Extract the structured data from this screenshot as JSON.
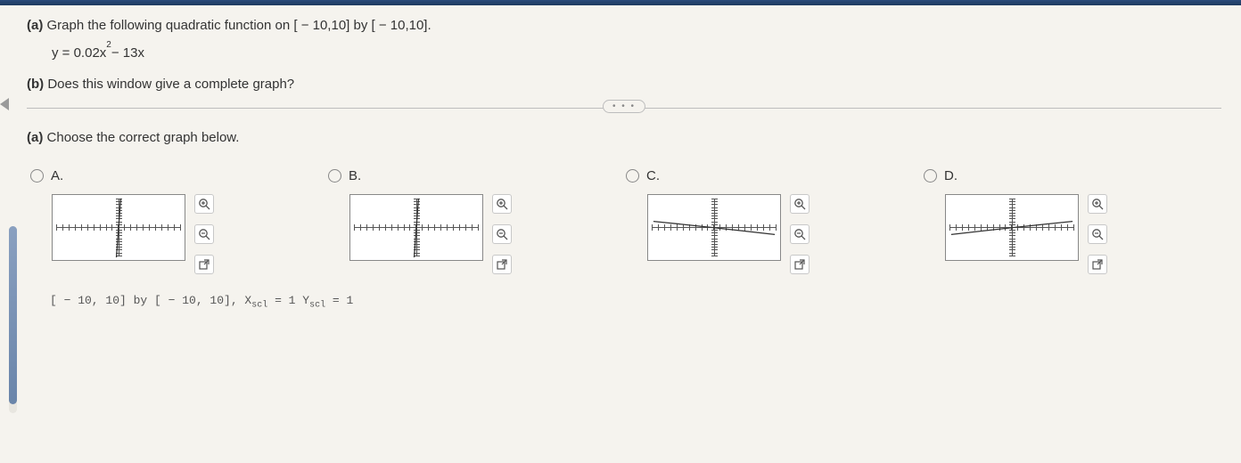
{
  "topbar_color": "#1e3a5f",
  "question": {
    "part_a_label": "(a)",
    "part_a_text": "Graph the following quadratic function on [ − 10,10] by [ − 10,10].",
    "equation_lhs": "y = 0.02x",
    "equation_exp": "2",
    "equation_rhs": " − 13x",
    "part_b_label": "(b)",
    "part_b_text": "Does this window give a complete graph?"
  },
  "pill_text": "• • •",
  "choose": {
    "label": "(a)",
    "text": "Choose the correct graph below."
  },
  "options": [
    {
      "label": "A.",
      "curve_type": "steep_neg_through_origin"
    },
    {
      "label": "B.",
      "curve_type": "steep_pos_through_origin"
    },
    {
      "label": "C.",
      "curve_type": "shallow_neg"
    },
    {
      "label": "D.",
      "curve_type": "shallow_pos"
    }
  ],
  "tools": {
    "zoom_in": "⊕",
    "zoom_out": "⊖",
    "popout": "↗"
  },
  "caption": {
    "prefix": "[ − 10, 10]  by  [ − 10, 10],  X",
    "sub1": "scl",
    "mid": " = 1  Y",
    "sub2": "scl",
    "suffix": " = 1"
  },
  "graph_style": {
    "thumb_w": 150,
    "thumb_h": 75,
    "border_color": "#888888",
    "axis_color": "#555555",
    "background": "#ffffff",
    "xlim": [
      -10,
      10
    ],
    "ylim": [
      -10,
      10
    ],
    "xtick_step": 1,
    "ytick_step": 1,
    "curve_color": "#333333",
    "curve_width": 1.3
  }
}
